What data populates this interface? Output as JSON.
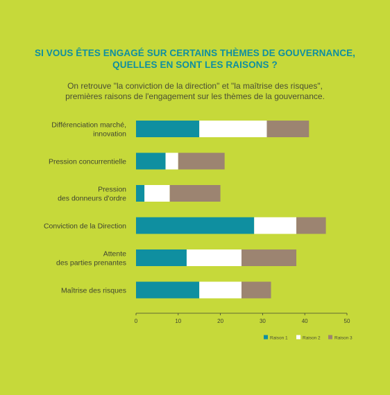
{
  "title": {
    "line1": "SI VOUS ÊTES ENGAGÉ SUR CERTAINS THÈMES DE GOUVERNANCE,",
    "line2": "QUELLES EN SONT LES RAISONS ?"
  },
  "subtitle": {
    "line1": "On retrouve \"la conviction de la direction\" et \"la maîtrise des risques\",",
    "line2": "premières raisons de l'engagement sur les thèmes de la gouvernance."
  },
  "colors": {
    "background": "#c6d93a",
    "title": "#0f8fa0",
    "raison1": "#0f8fa0",
    "raison2": "#ffffff",
    "raison3": "#9c8471"
  },
  "chart_data": {
    "type": "bar",
    "orientation": "horizontal",
    "stacked": true,
    "categories": [
      [
        "Différenciation marché,",
        "innovation"
      ],
      [
        "Pression concurrentielle"
      ],
      [
        "Pression",
        "des donneurs d'ordre"
      ],
      [
        "Conviction de la Direction"
      ],
      [
        "Attente",
        "des parties prenantes"
      ],
      [
        "Maîtrise des risques"
      ]
    ],
    "series": [
      {
        "name": "Raison 1",
        "values": [
          15,
          7,
          2,
          28,
          12,
          15
        ]
      },
      {
        "name": "Raison 2",
        "values": [
          16,
          3,
          6,
          10,
          13,
          10
        ]
      },
      {
        "name": "Raison 3",
        "values": [
          10,
          11,
          12,
          7,
          13,
          7
        ]
      }
    ],
    "xlim": [
      0,
      50
    ],
    "xticks": [
      0,
      10,
      20,
      30,
      40,
      50
    ],
    "grid": false,
    "legend_position": "bottom-right"
  }
}
